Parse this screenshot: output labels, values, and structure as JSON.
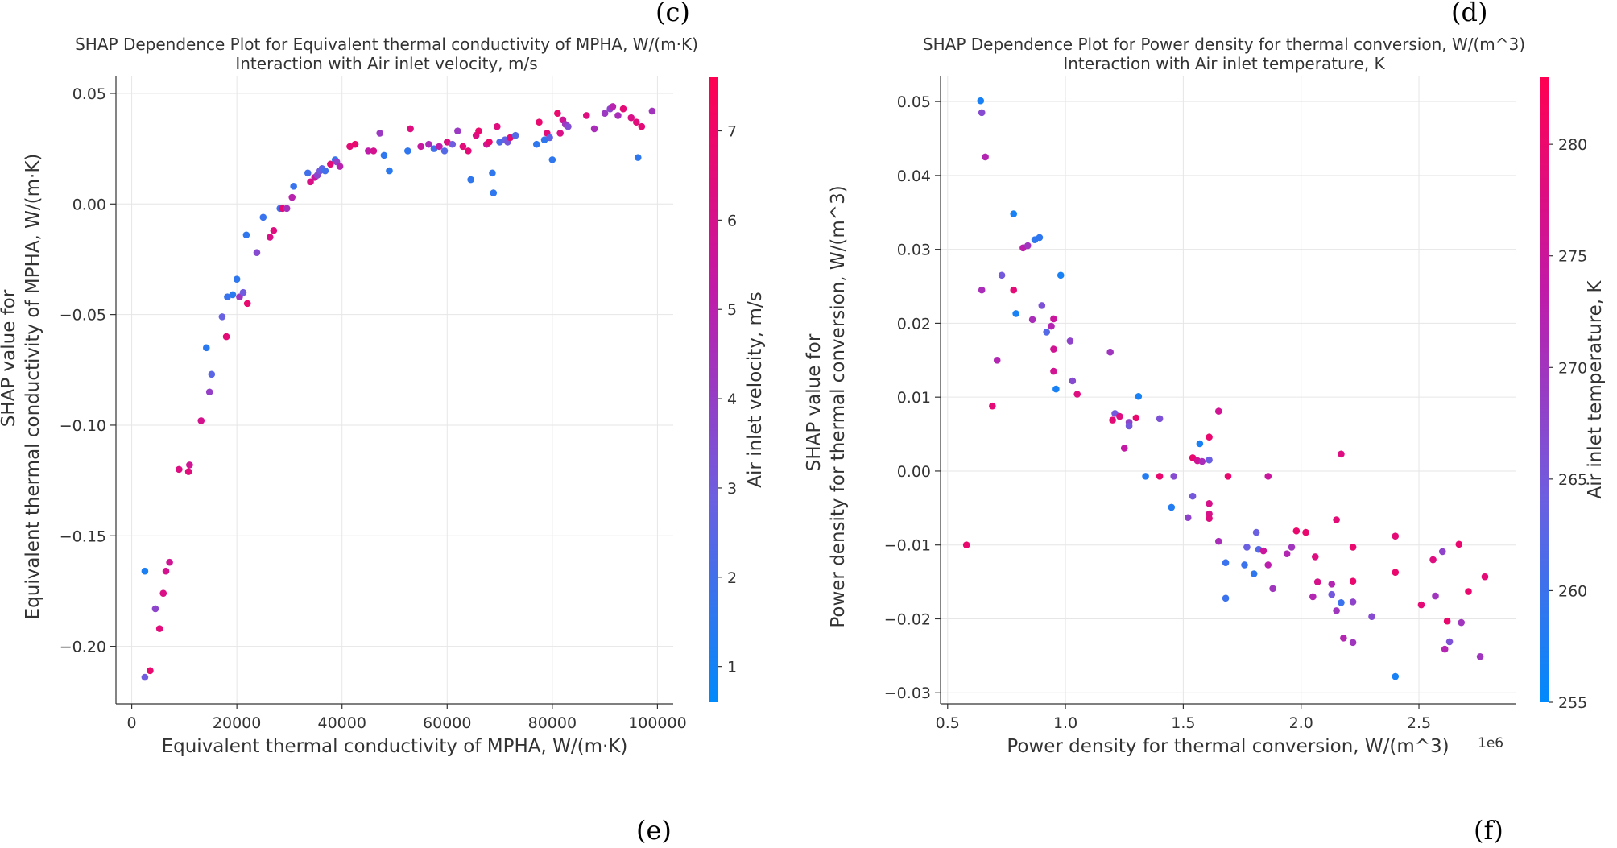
{
  "panel_labels": {
    "c": "(c)",
    "d": "(d)",
    "e": "(e)",
    "f": "(f)"
  },
  "chart_data": [
    {
      "type": "scatter",
      "title": "SHAP Dependence Plot for Equivalent thermal conductivity of MPHA, W/(m·K)",
      "subtitle": "Interaction with Air inlet velocity, m/s",
      "xlabel": "Equivalent thermal conductivity of MPHA, W/(m·K)",
      "ylabel_lines": [
        "SHAP value for",
        "Equivalent thermal conductivity of MPHA, W/(m·K)"
      ],
      "xlim": [
        -3000,
        103000
      ],
      "ylim": [
        -0.226,
        0.058
      ],
      "xticks": [
        0,
        20000,
        40000,
        60000,
        80000,
        100000
      ],
      "xtick_labels": [
        "0",
        "20000",
        "40000",
        "60000",
        "80000",
        "100000"
      ],
      "yticks": [
        -0.2,
        -0.15,
        -0.1,
        -0.05,
        0.0,
        0.05
      ],
      "ytick_labels": [
        "−0.20",
        "−0.15",
        "−0.10",
        "−0.05",
        "0.00",
        "0.05"
      ],
      "offset_label": "",
      "colorbar": {
        "label": "Air inlet velocity, m/s",
        "range": [
          0.6,
          7.6
        ],
        "ticks": [
          1,
          2,
          3,
          4,
          5,
          6,
          7
        ],
        "tick_labels": [
          "1",
          "2",
          "3",
          "4",
          "5",
          "6",
          "7"
        ],
        "colors": [
          "#008afb",
          "#6e5ee0",
          "#c11aa8",
          "#ff0052"
        ]
      },
      "points": [
        [
          2500,
          -0.214,
          3.0
        ],
        [
          2500,
          -0.166,
          1.2
        ],
        [
          3500,
          -0.211,
          6.8
        ],
        [
          4500,
          -0.183,
          3.8
        ],
        [
          5300,
          -0.192,
          6.5
        ],
        [
          6000,
          -0.176,
          6.2
        ],
        [
          6500,
          -0.166,
          6.0
        ],
        [
          7200,
          -0.162,
          5.8
        ],
        [
          9000,
          -0.12,
          6.3
        ],
        [
          10800,
          -0.121,
          6.5
        ],
        [
          11000,
          -0.118,
          5.8
        ],
        [
          13200,
          -0.098,
          6.0
        ],
        [
          14200,
          -0.065,
          1.5
        ],
        [
          14800,
          -0.085,
          4.0
        ],
        [
          15200,
          -0.077,
          2.5
        ],
        [
          17200,
          -0.051,
          2.8
        ],
        [
          18000,
          -0.06,
          6.6
        ],
        [
          18200,
          -0.042,
          1.8
        ],
        [
          19200,
          -0.041,
          1.5
        ],
        [
          20000,
          -0.034,
          1.6
        ],
        [
          20500,
          -0.042,
          4.3
        ],
        [
          21200,
          -0.04,
          3.0
        ],
        [
          22000,
          -0.045,
          6.8
        ],
        [
          21800,
          -0.014,
          1.6
        ],
        [
          23800,
          -0.022,
          3.6
        ],
        [
          25000,
          -0.006,
          1.8
        ],
        [
          26300,
          -0.015,
          6.2
        ],
        [
          27000,
          -0.012,
          6.4
        ],
        [
          28200,
          -0.002,
          2.0
        ],
        [
          28700,
          -0.002,
          6.7
        ],
        [
          29500,
          -0.002,
          4.5
        ],
        [
          30500,
          0.003,
          5.0
        ],
        [
          30800,
          0.008,
          1.8
        ],
        [
          33500,
          0.014,
          2.0
        ],
        [
          34000,
          0.01,
          6.2
        ],
        [
          34800,
          0.012,
          5.6
        ],
        [
          35300,
          0.013,
          3.8
        ],
        [
          35800,
          0.015,
          3.1
        ],
        [
          36200,
          0.016,
          2.6
        ],
        [
          36800,
          0.015,
          2.0
        ],
        [
          37800,
          0.018,
          6.6
        ],
        [
          38700,
          0.02,
          1.8
        ],
        [
          39000,
          0.019,
          4.0
        ],
        [
          39600,
          0.017,
          5.0
        ],
        [
          41500,
          0.026,
          6.6
        ],
        [
          42500,
          0.027,
          6.8
        ],
        [
          45000,
          0.024,
          5.2
        ],
        [
          46000,
          0.024,
          6.0
        ],
        [
          47200,
          0.032,
          4.2
        ],
        [
          48000,
          0.022,
          1.6
        ],
        [
          49000,
          0.015,
          1.5
        ],
        [
          52500,
          0.024,
          1.6
        ],
        [
          53000,
          0.034,
          6.4
        ],
        [
          55000,
          0.026,
          5.5
        ],
        [
          56500,
          0.027,
          4.6
        ],
        [
          57500,
          0.025,
          2.0
        ],
        [
          58500,
          0.026,
          5.2
        ],
        [
          59500,
          0.024,
          2.4
        ],
        [
          60000,
          0.028,
          6.3
        ],
        [
          61000,
          0.027,
          3.0
        ],
        [
          62000,
          0.033,
          4.2
        ],
        [
          63000,
          0.026,
          6.5
        ],
        [
          64000,
          0.024,
          6.6
        ],
        [
          64500,
          0.011,
          1.6
        ],
        [
          65500,
          0.031,
          6.3
        ],
        [
          66000,
          0.033,
          6.8
        ],
        [
          67500,
          0.027,
          5.8
        ],
        [
          68000,
          0.028,
          6.8
        ],
        [
          68600,
          0.014,
          1.6
        ],
        [
          68800,
          0.005,
          1.6
        ],
        [
          69500,
          0.035,
          6.4
        ],
        [
          70000,
          0.028,
          2.2
        ],
        [
          71000,
          0.029,
          2.6
        ],
        [
          71500,
          0.028,
          3.2
        ],
        [
          72000,
          0.03,
          6.6
        ],
        [
          73000,
          0.031,
          2.4
        ],
        [
          77000,
          0.027,
          1.6
        ],
        [
          77500,
          0.037,
          6.8
        ],
        [
          78500,
          0.029,
          1.6
        ],
        [
          79000,
          0.032,
          6.5
        ],
        [
          79500,
          0.03,
          2.6
        ],
        [
          80000,
          0.02,
          1.6
        ],
        [
          81000,
          0.041,
          6.9
        ],
        [
          81500,
          0.032,
          6.2
        ],
        [
          82000,
          0.038,
          5.8
        ],
        [
          82500,
          0.036,
          4.3
        ],
        [
          83000,
          0.035,
          3.5
        ],
        [
          86500,
          0.04,
          6.4
        ],
        [
          88000,
          0.034,
          4.6
        ],
        [
          90000,
          0.041,
          4.2
        ],
        [
          91000,
          0.043,
          3.8
        ],
        [
          91500,
          0.044,
          5.0
        ],
        [
          92500,
          0.04,
          4.6
        ],
        [
          93500,
          0.043,
          6.6
        ],
        [
          95000,
          0.039,
          6.2
        ],
        [
          96000,
          0.037,
          6.5
        ],
        [
          96300,
          0.021,
          1.6
        ],
        [
          97000,
          0.035,
          6.6
        ],
        [
          99000,
          0.042,
          4.4
        ]
      ]
    },
    {
      "type": "scatter",
      "title": "SHAP Dependence Plot for Power density for thermal conversion, W/(m^3)",
      "subtitle": "Interaction with Air inlet temperature, K",
      "xlabel": "Power density for thermal conversion, W/(m^3)",
      "ylabel_lines": [
        "SHAP value for",
        "Power density for thermal conversion, W/(m^3)"
      ],
      "xlim": [
        0.47,
        2.91
      ],
      "ylim": [
        -0.0315,
        0.0535
      ],
      "xticks": [
        0.5,
        1.0,
        1.5,
        2.0,
        2.5
      ],
      "xtick_labels": [
        "0.5",
        "1.0",
        "1.5",
        "2.0",
        "2.5"
      ],
      "yticks": [
        -0.03,
        -0.02,
        -0.01,
        0.0,
        0.01,
        0.02,
        0.03,
        0.04,
        0.05
      ],
      "ytick_labels": [
        "−0.03",
        "−0.02",
        "−0.01",
        "0.00",
        "0.01",
        "0.02",
        "0.03",
        "0.04",
        "0.05"
      ],
      "offset_label": "1e6",
      "colorbar": {
        "label": "Air inlet temperature, K",
        "range": [
          255,
          283
        ],
        "ticks": [
          255,
          260,
          265,
          270,
          275,
          280
        ],
        "tick_labels": [
          "255",
          "260",
          "265",
          "270",
          "275",
          "280"
        ],
        "colors": [
          "#008afb",
          "#6e5ee0",
          "#c11aa8",
          "#ff0052"
        ]
      },
      "points": [
        [
          0.58,
          -0.01,
          280
        ],
        [
          0.64,
          0.0501,
          257
        ],
        [
          0.645,
          0.0485,
          267
        ],
        [
          0.66,
          0.0425,
          272
        ],
        [
          0.645,
          0.0245,
          271
        ],
        [
          0.69,
          0.0088,
          279
        ],
        [
          0.71,
          0.015,
          272
        ],
        [
          0.73,
          0.0265,
          265
        ],
        [
          0.78,
          0.0348,
          257
        ],
        [
          0.78,
          0.0245,
          279
        ],
        [
          0.79,
          0.0213,
          257
        ],
        [
          0.82,
          0.0302,
          273
        ],
        [
          0.84,
          0.0305,
          270
        ],
        [
          0.86,
          0.0205,
          271
        ],
        [
          0.87,
          0.0313,
          259
        ],
        [
          0.89,
          0.0316,
          259
        ],
        [
          0.9,
          0.0224,
          266
        ],
        [
          0.92,
          0.0188,
          262
        ],
        [
          0.94,
          0.0196,
          272
        ],
        [
          0.95,
          0.0206,
          275
        ],
        [
          0.95,
          0.0165,
          276
        ],
        [
          0.95,
          0.0135,
          276
        ],
        [
          0.96,
          0.0111,
          257
        ],
        [
          0.98,
          0.0265,
          257
        ],
        [
          1.02,
          0.0176,
          268
        ],
        [
          1.03,
          0.0122,
          267
        ],
        [
          1.05,
          0.0104,
          278
        ],
        [
          1.19,
          0.0161,
          270
        ],
        [
          1.2,
          0.0069,
          279
        ],
        [
          1.21,
          0.0078,
          265
        ],
        [
          1.23,
          0.0074,
          278
        ],
        [
          1.25,
          0.0031,
          274
        ],
        [
          1.27,
          0.0066,
          268
        ],
        [
          1.27,
          0.0061,
          265
        ],
        [
          1.3,
          0.0072,
          280
        ],
        [
          1.31,
          0.0101,
          257
        ],
        [
          1.34,
          -0.0007,
          258
        ],
        [
          1.4,
          -0.0007,
          280
        ],
        [
          1.4,
          0.0071,
          266
        ],
        [
          1.45,
          -0.0049,
          258
        ],
        [
          1.46,
          -0.0007,
          267
        ],
        [
          1.52,
          -0.0063,
          268
        ],
        [
          1.54,
          -0.0034,
          265
        ],
        [
          1.54,
          0.0018,
          280
        ],
        [
          1.56,
          0.0014,
          276
        ],
        [
          1.57,
          0.0037,
          257
        ],
        [
          1.58,
          0.0013,
          271
        ],
        [
          1.61,
          0.0046,
          280
        ],
        [
          1.61,
          0.0015,
          264
        ],
        [
          1.61,
          -0.0044,
          277
        ],
        [
          1.61,
          -0.0058,
          277
        ],
        [
          1.61,
          -0.0064,
          278
        ],
        [
          1.65,
          0.0081,
          276
        ],
        [
          1.65,
          -0.0095,
          271
        ],
        [
          1.68,
          -0.0172,
          260
        ],
        [
          1.68,
          -0.0124,
          260
        ],
        [
          1.69,
          -0.0007,
          280
        ],
        [
          1.76,
          -0.0127,
          260
        ],
        [
          1.77,
          -0.0103,
          264
        ],
        [
          1.8,
          -0.0139,
          259
        ],
        [
          1.81,
          -0.0083,
          264
        ],
        [
          1.82,
          -0.0106,
          262
        ],
        [
          1.84,
          -0.0108,
          275
        ],
        [
          1.86,
          -0.0007,
          275
        ],
        [
          1.86,
          -0.0127,
          273
        ],
        [
          1.88,
          -0.0159,
          270
        ],
        [
          1.94,
          -0.0112,
          272
        ],
        [
          1.96,
          -0.0103,
          270
        ],
        [
          1.98,
          -0.0081,
          280
        ],
        [
          2.02,
          -0.0083,
          280
        ],
        [
          2.05,
          -0.017,
          272
        ],
        [
          2.06,
          -0.0116,
          278
        ],
        [
          2.07,
          -0.015,
          277
        ],
        [
          2.13,
          -0.0153,
          272
        ],
        [
          2.13,
          -0.0167,
          265
        ],
        [
          2.15,
          -0.0066,
          279
        ],
        [
          2.15,
          -0.0189,
          270
        ],
        [
          2.17,
          -0.0178,
          260
        ],
        [
          2.17,
          0.0023,
          278
        ],
        [
          2.18,
          -0.0226,
          272
        ],
        [
          2.22,
          -0.0103,
          280
        ],
        [
          2.22,
          -0.0149,
          280
        ],
        [
          2.22,
          -0.0177,
          268
        ],
        [
          2.22,
          -0.0232,
          270
        ],
        [
          2.3,
          -0.0197,
          267
        ],
        [
          2.4,
          -0.0088,
          279
        ],
        [
          2.4,
          -0.0278,
          257
        ],
        [
          2.4,
          -0.0137,
          280
        ],
        [
          2.51,
          -0.0181,
          279
        ],
        [
          2.56,
          -0.012,
          278
        ],
        [
          2.57,
          -0.0169,
          270
        ],
        [
          2.6,
          -0.0109,
          268
        ],
        [
          2.61,
          -0.0241,
          272
        ],
        [
          2.62,
          -0.0203,
          280
        ],
        [
          2.63,
          -0.0231,
          266
        ],
        [
          2.67,
          -0.0099,
          280
        ],
        [
          2.68,
          -0.0205,
          270
        ],
        [
          2.71,
          -0.0163,
          280
        ],
        [
          2.76,
          -0.0251,
          270
        ],
        [
          2.78,
          -0.0143,
          279
        ]
      ]
    }
  ]
}
